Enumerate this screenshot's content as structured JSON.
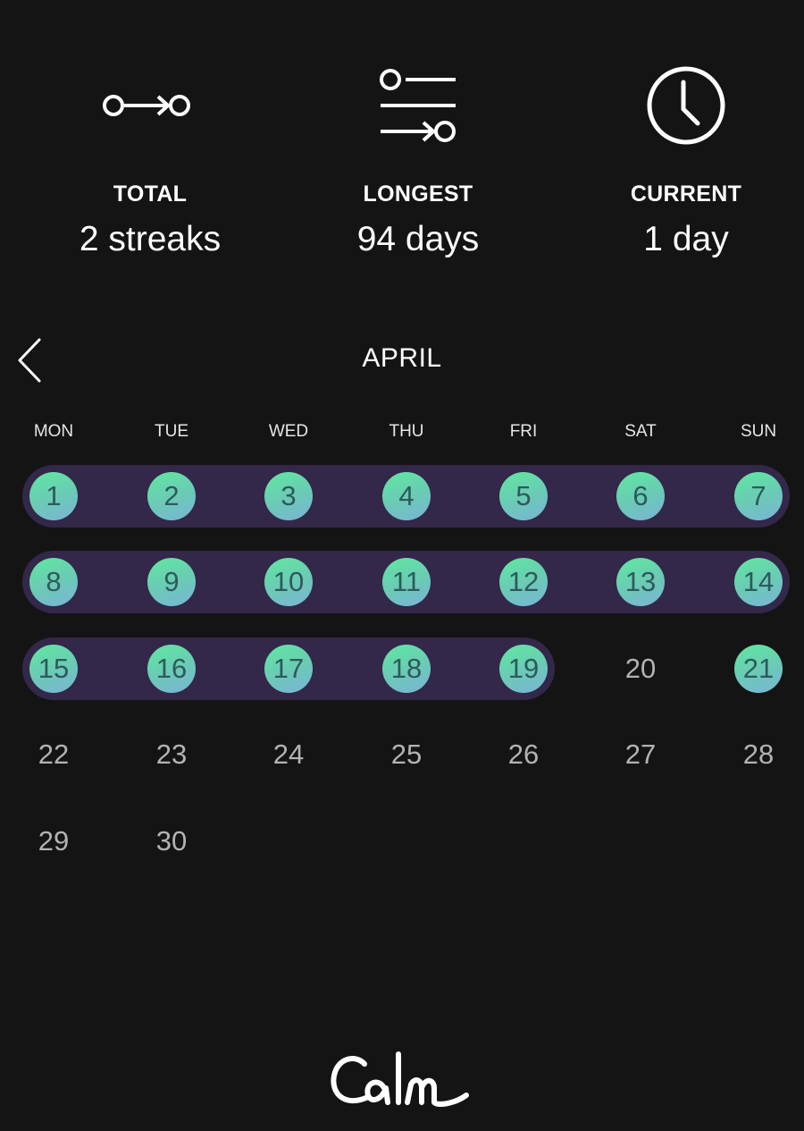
{
  "stats": {
    "total": {
      "icon": "streak-path-icon",
      "label": "TOTAL",
      "value": "2 streaks"
    },
    "longest": {
      "icon": "streak-list-icon",
      "label": "LONGEST",
      "value": "94 days"
    },
    "current": {
      "icon": "clock-icon",
      "label": "CURRENT",
      "value": "1 day"
    }
  },
  "calendar": {
    "back_icon": "chevron-left-icon",
    "month": "APRIL",
    "weekdays": [
      "MON",
      "TUE",
      "WED",
      "THU",
      "FRI",
      "SAT",
      "SUN"
    ],
    "first_weekday_index": 0,
    "days_in_month": 30,
    "completed_days": [
      1,
      2,
      3,
      4,
      5,
      6,
      7,
      8,
      9,
      10,
      11,
      12,
      13,
      14,
      15,
      16,
      17,
      18,
      19,
      21
    ],
    "streak_ranges": [
      [
        1,
        19
      ]
    ],
    "colors": {
      "streak_band": "#33274a",
      "day_gradient_start": "#5fe8a0",
      "day_gradient_end": "#7ab4d8",
      "completed_text": "#2e5a5a",
      "plain_text": "#b3b3b3"
    }
  },
  "brand": {
    "logo_icon": "calm-logo"
  }
}
